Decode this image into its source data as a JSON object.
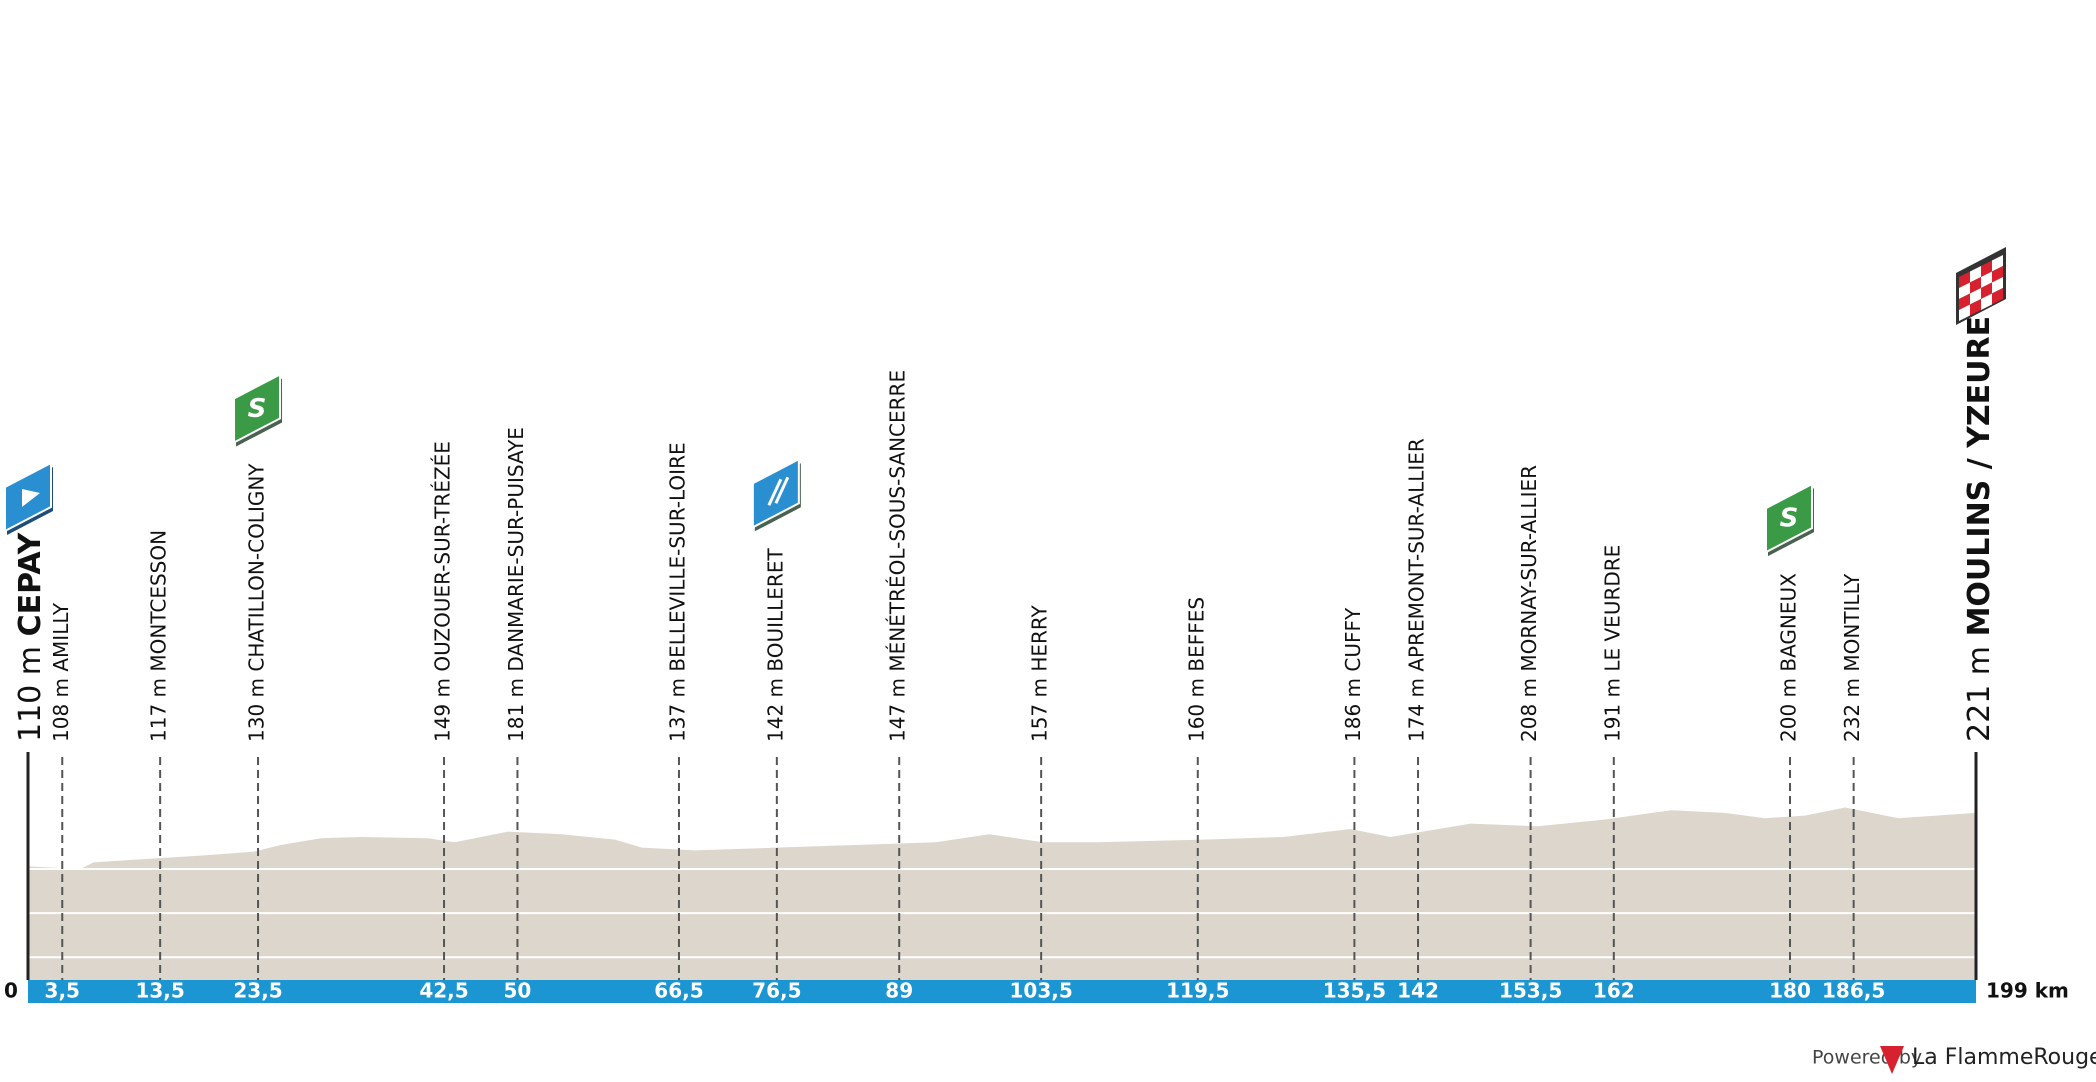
{
  "chart_data": {
    "type": "profile",
    "xlim": [
      0,
      199
    ],
    "xticks": [
      0,
      {
        "value": 3.5,
        "label": "3,5"
      },
      {
        "value": 13.5,
        "label": "13,5"
      },
      {
        "value": 23.5,
        "label": "23,5"
      },
      {
        "value": 42.5,
        "label": "42,5"
      },
      50,
      {
        "value": 66.5,
        "label": "66,5"
      },
      {
        "value": 76.5,
        "label": "76,5"
      },
      89,
      {
        "value": 103.5,
        "label": "103,5"
      },
      {
        "value": 119.5,
        "label": "119,5"
      },
      {
        "value": 135.5,
        "label": "135,5"
      },
      142,
      {
        "value": 153.5,
        "label": "153,5"
      },
      162,
      180,
      {
        "value": 186.5,
        "label": "186,5"
      },
      {
        "value": 199,
        "label": "199 km"
      }
    ],
    "start": {
      "altitude": "110 m",
      "name": "CEPAY"
    },
    "finish": {
      "altitude": "221 m",
      "name": "MOULINS / YZEURE"
    },
    "waypoints": [
      {
        "km": 3.5,
        "label": "108 m AMILLY"
      },
      {
        "km": 13.5,
        "label": "117 m MONTCESSON"
      },
      {
        "km": 23.5,
        "label": "130 m CHATILLON-COLIGNY",
        "marker": "S"
      },
      {
        "km": 42.5,
        "label": "149 m OUZOUER-SUR-TRÉZÉE"
      },
      {
        "km": 50,
        "label": "181 m DANMARIE-SUR-PUISAYE"
      },
      {
        "km": 66.5,
        "label": "137 m BELLEVILLE-SUR-LOIRE"
      },
      {
        "km": 76.5,
        "label": "142 m BOUILLERET",
        "marker": "feed"
      },
      {
        "km": 89,
        "label": "147 m MÉNÉTRÉOL-SOUS-SANCERRE"
      },
      {
        "km": 103.5,
        "label": "157 m HERRY"
      },
      {
        "km": 119.5,
        "label": "160 m BEFFES"
      },
      {
        "km": 135.5,
        "label": "186 m CUFFY"
      },
      {
        "km": 142,
        "label": "174 m APREMONT-SUR-ALLIER"
      },
      {
        "km": 153.5,
        "label": "208 m MORNAY-SUR-ALLIER"
      },
      {
        "km": 162,
        "label": "191 m LE VEURDRE"
      },
      {
        "km": 180,
        "label": "200 m BAGNEUX",
        "marker": "S"
      },
      {
        "km": 186.5,
        "label": "232 m MONTILLY"
      }
    ],
    "colors": {
      "bar": "#1b96d2",
      "terrain": "#ddd6cc",
      "sprint": "#3a9a46",
      "feed": "#2a8fd0"
    }
  },
  "footer": {
    "powered_by": "Powered by",
    "brand": "La FlammeRouge"
  }
}
